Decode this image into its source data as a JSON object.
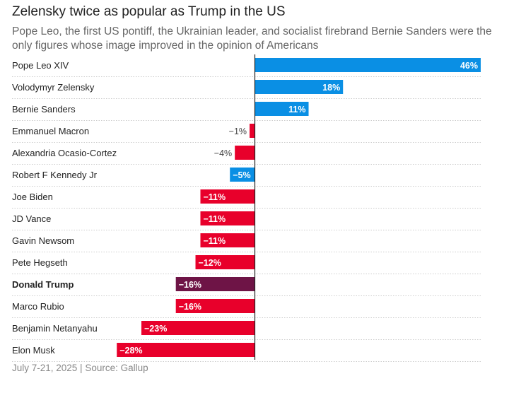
{
  "title": "Zelensky twice as popular as Trump in the US",
  "subtitle": "Pope Leo, the first US pontiff, the Ukrainian leader, and socialist firebrand Bernie Sanders were the only figures whose image improved in the opinion of Americans",
  "source": "July 7-21, 2025 | Source: Gallup",
  "colors": {
    "positive": "#0a8fe4",
    "negative": "#e8002b",
    "highlight": "#6e1446"
  },
  "chart_data": {
    "type": "bar",
    "orientation": "horizontal",
    "title": "Zelensky twice as popular as Trump in the US",
    "categories": [
      "Pope Leo XIV",
      "Volodymyr Zelensky",
      "Bernie Sanders",
      "Emmanuel Macron",
      "Alexandria Ocasio-Cortez",
      "Robert F Kennedy Jr",
      "Joe Biden",
      "JD Vance",
      "Gavin Newsom",
      "Pete Hegseth",
      "Donald Trump",
      "Marco Rubio",
      "Benjamin Netanyahu",
      "Elon Musk"
    ],
    "values": [
      46,
      18,
      11,
      -1,
      -4,
      -5,
      -11,
      -11,
      -11,
      -12,
      -16,
      -16,
      -23,
      -28
    ],
    "labels": [
      "46%",
      "18%",
      "11%",
      "−1%",
      "−4%",
      "−5%",
      "−11%",
      "−11%",
      "−11%",
      "−12%",
      "−16%",
      "−16%",
      "−23%",
      "−28%"
    ],
    "bar_colors": [
      "positive",
      "positive",
      "positive",
      "negative",
      "negative",
      "positive",
      "negative",
      "negative",
      "negative",
      "negative",
      "highlight",
      "negative",
      "negative",
      "negative"
    ],
    "highlight_category": "Donald Trump",
    "xlim": [
      -28.7,
      46
    ],
    "unit": "%"
  }
}
